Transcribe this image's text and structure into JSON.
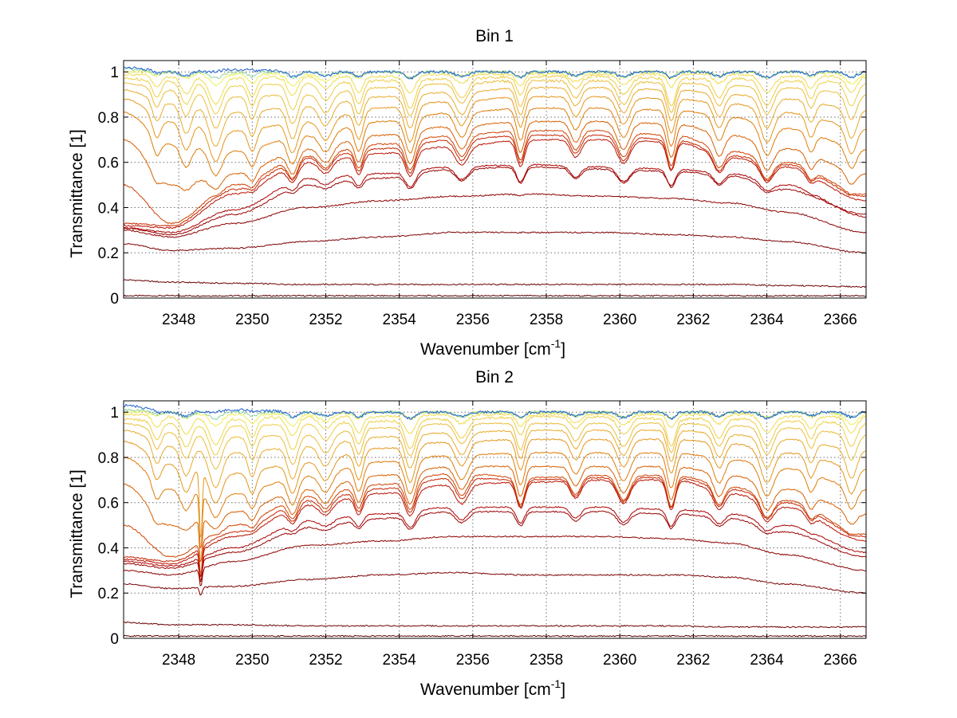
{
  "chart_data": [
    {
      "type": "line",
      "title": "Bin 1",
      "xlabel": "Wavenumber [cm",
      "xlabel_sup": "-1",
      "xlabel_tail": "]",
      "ylabel": "Transmittance [1]",
      "xlim": [
        2346.5,
        2366.7
      ],
      "ylim": [
        0,
        1.05
      ],
      "xticks": [
        2348,
        2350,
        2352,
        2354,
        2356,
        2358,
        2360,
        2362,
        2364,
        2366
      ],
      "yticks": [
        0,
        0.2,
        0.4,
        0.6,
        0.8,
        1
      ],
      "ytick_labels": [
        "0",
        "0.2",
        "0.4",
        "0.6",
        "0.8",
        "1"
      ],
      "grid": true,
      "absorption_lines": [
        2347.4,
        2348.2,
        2349.0,
        2350.0,
        2351.1,
        2352.0,
        2352.9,
        2354.3,
        2355.7,
        2357.3,
        2358.8,
        2360.1,
        2361.4,
        2362.7,
        2364.0,
        2365.2,
        2366.3
      ],
      "series": [
        {
          "color": "#5c0000",
          "values": [
            0.01,
            0.01,
            0.01,
            0.01,
            0.01,
            0.01,
            0.01,
            0.01,
            0.01,
            0.01,
            0.01,
            0.01
          ]
        },
        {
          "color": "#6a0000",
          "values": [
            0.08,
            0.07,
            0.065,
            0.06,
            0.06,
            0.06,
            0.06,
            0.06,
            0.06,
            0.06,
            0.055,
            0.05
          ]
        },
        {
          "color": "#7a0000",
          "values": [
            0.24,
            0.21,
            0.22,
            0.25,
            0.27,
            0.29,
            0.29,
            0.29,
            0.28,
            0.27,
            0.25,
            0.2
          ]
        },
        {
          "color": "#8a0000",
          "values": [
            0.3,
            0.27,
            0.33,
            0.4,
            0.43,
            0.45,
            0.46,
            0.45,
            0.44,
            0.42,
            0.38,
            0.29
          ]
        },
        {
          "color": "#9a0000",
          "values": [
            0.31,
            0.28,
            0.37,
            0.5,
            0.53,
            0.57,
            0.58,
            0.57,
            0.56,
            0.54,
            0.48,
            0.37
          ]
        },
        {
          "color": "#ab0000",
          "values": [
            0.31,
            0.29,
            0.39,
            0.53,
            0.55,
            0.58,
            0.59,
            0.58,
            0.57,
            0.55,
            0.5,
            0.36
          ]
        },
        {
          "color": "#b91200",
          "values": [
            0.32,
            0.31,
            0.46,
            0.6,
            0.64,
            0.67,
            0.7,
            0.7,
            0.69,
            0.62,
            0.58,
            0.43
          ]
        },
        {
          "color": "#c52400",
          "values": [
            0.33,
            0.32,
            0.48,
            0.62,
            0.66,
            0.7,
            0.72,
            0.72,
            0.7,
            0.63,
            0.59,
            0.45
          ]
        },
        {
          "color": "#d04100",
          "values": [
            0.5,
            0.33,
            0.5,
            0.63,
            0.68,
            0.72,
            0.74,
            0.74,
            0.72,
            0.65,
            0.6,
            0.46
          ]
        },
        {
          "color": "#d85f00",
          "values": [
            0.7,
            0.5,
            0.55,
            0.66,
            0.72,
            0.76,
            0.78,
            0.78,
            0.77,
            0.72,
            0.66,
            0.55
          ]
        },
        {
          "color": "#df7c08",
          "values": [
            0.82,
            0.68,
            0.65,
            0.72,
            0.78,
            0.82,
            0.84,
            0.84,
            0.83,
            0.8,
            0.75,
            0.66
          ]
        },
        {
          "color": "#e4961a",
          "values": [
            0.88,
            0.78,
            0.74,
            0.78,
            0.84,
            0.87,
            0.89,
            0.89,
            0.88,
            0.86,
            0.82,
            0.75
          ]
        },
        {
          "color": "#e8ab2b",
          "values": [
            0.92,
            0.86,
            0.82,
            0.85,
            0.89,
            0.91,
            0.93,
            0.93,
            0.92,
            0.9,
            0.88,
            0.83
          ]
        },
        {
          "color": "#ebbd3a",
          "values": [
            0.95,
            0.92,
            0.89,
            0.9,
            0.93,
            0.95,
            0.96,
            0.96,
            0.95,
            0.94,
            0.93,
            0.9
          ]
        },
        {
          "color": "#eece45",
          "values": [
            0.97,
            0.96,
            0.94,
            0.95,
            0.96,
            0.97,
            0.98,
            0.98,
            0.97,
            0.97,
            0.96,
            0.95
          ]
        },
        {
          "color": "#efdc4e",
          "values": [
            0.99,
            0.98,
            0.97,
            0.98,
            0.98,
            0.99,
            0.99,
            0.99,
            0.99,
            0.99,
            0.98,
            0.98
          ]
        },
        {
          "color": "#eef05a",
          "values": [
            1.0,
            1.0,
            0.99,
            0.99,
            1.0,
            1.0,
            1.0,
            1.0,
            1.0,
            1.0,
            1.0,
            0.99
          ]
        },
        {
          "color": "#8fd6a0",
          "values": [
            1.01,
            1.0,
            1.0,
            1.0,
            1.0,
            1.0,
            1.0,
            1.0,
            1.0,
            1.0,
            1.0,
            1.0
          ]
        },
        {
          "color": "#1f5fd0",
          "values": [
            1.02,
            1.0,
            1.01,
            1.0,
            1.0,
            1.0,
            1.0,
            1.0,
            1.0,
            1.0,
            1.0,
            1.0
          ]
        }
      ]
    },
    {
      "type": "line",
      "title": "Bin 2",
      "xlabel": "Wavenumber [cm",
      "xlabel_sup": "-1",
      "xlabel_tail": "]",
      "ylabel": "Transmittance [1]",
      "xlim": [
        2346.5,
        2366.7
      ],
      "ylim": [
        0,
        1.05
      ],
      "xticks": [
        2348,
        2350,
        2352,
        2354,
        2356,
        2358,
        2360,
        2362,
        2364,
        2366
      ],
      "yticks": [
        0,
        0.2,
        0.4,
        0.6,
        0.8,
        1
      ],
      "ytick_labels": [
        "0",
        "0.2",
        "0.4",
        "0.6",
        "0.8",
        "1"
      ],
      "grid": true,
      "absorption_lines": [
        2347.4,
        2348.2,
        2349.0,
        2350.0,
        2351.1,
        2352.0,
        2352.9,
        2354.3,
        2355.7,
        2357.3,
        2358.8,
        2360.1,
        2361.4,
        2362.7,
        2364.0,
        2365.2,
        2366.3
      ],
      "series": [
        {
          "color": "#5c0000",
          "values": [
            0.01,
            0.01,
            0.01,
            0.01,
            0.01,
            0.01,
            0.01,
            0.01,
            0.01,
            0.01,
            0.01,
            0.01
          ]
        },
        {
          "color": "#6a0000",
          "values": [
            0.07,
            0.06,
            0.06,
            0.055,
            0.055,
            0.055,
            0.055,
            0.055,
            0.055,
            0.05,
            0.05,
            0.05
          ]
        },
        {
          "color": "#7a0000",
          "values": [
            0.24,
            0.22,
            0.23,
            0.26,
            0.28,
            0.29,
            0.28,
            0.28,
            0.28,
            0.27,
            0.24,
            0.2
          ]
        },
        {
          "color": "#8a0000",
          "values": [
            0.3,
            0.28,
            0.34,
            0.41,
            0.43,
            0.45,
            0.45,
            0.45,
            0.44,
            0.42,
            0.37,
            0.3
          ]
        },
        {
          "color": "#9a0000",
          "values": [
            0.33,
            0.31,
            0.38,
            0.49,
            0.53,
            0.56,
            0.56,
            0.56,
            0.55,
            0.53,
            0.47,
            0.36
          ]
        },
        {
          "color": "#ab0000",
          "values": [
            0.34,
            0.32,
            0.4,
            0.52,
            0.55,
            0.58,
            0.58,
            0.58,
            0.57,
            0.55,
            0.5,
            0.38
          ]
        },
        {
          "color": "#b91200",
          "values": [
            0.35,
            0.33,
            0.45,
            0.59,
            0.64,
            0.68,
            0.69,
            0.7,
            0.7,
            0.64,
            0.58,
            0.43
          ]
        },
        {
          "color": "#c52400",
          "values": [
            0.36,
            0.34,
            0.47,
            0.61,
            0.66,
            0.71,
            0.7,
            0.71,
            0.71,
            0.66,
            0.6,
            0.45
          ]
        },
        {
          "color": "#d04100",
          "values": [
            0.5,
            0.36,
            0.5,
            0.63,
            0.68,
            0.73,
            0.71,
            0.72,
            0.72,
            0.67,
            0.61,
            0.46
          ]
        },
        {
          "color": "#d85f00",
          "values": [
            0.68,
            0.5,
            0.56,
            0.66,
            0.72,
            0.76,
            0.76,
            0.76,
            0.76,
            0.72,
            0.66,
            0.55
          ]
        },
        {
          "color": "#df7c08",
          "values": [
            0.8,
            0.66,
            0.64,
            0.72,
            0.78,
            0.81,
            0.82,
            0.82,
            0.82,
            0.79,
            0.75,
            0.66
          ]
        },
        {
          "color": "#e4961a",
          "values": [
            0.87,
            0.77,
            0.73,
            0.78,
            0.84,
            0.87,
            0.88,
            0.88,
            0.88,
            0.86,
            0.82,
            0.75
          ]
        },
        {
          "color": "#e8ab2b",
          "values": [
            0.92,
            0.85,
            0.82,
            0.85,
            0.89,
            0.91,
            0.92,
            0.92,
            0.92,
            0.9,
            0.88,
            0.83
          ]
        },
        {
          "color": "#ebbd3a",
          "values": [
            0.95,
            0.91,
            0.89,
            0.9,
            0.93,
            0.95,
            0.95,
            0.95,
            0.95,
            0.94,
            0.93,
            0.9
          ]
        },
        {
          "color": "#eece45",
          "values": [
            0.97,
            0.95,
            0.94,
            0.95,
            0.96,
            0.97,
            0.98,
            0.98,
            0.97,
            0.97,
            0.96,
            0.95
          ]
        },
        {
          "color": "#efdc4e",
          "values": [
            0.99,
            0.98,
            0.97,
            0.98,
            0.98,
            0.99,
            0.99,
            0.99,
            0.99,
            0.99,
            0.98,
            0.98
          ]
        },
        {
          "color": "#eef05a",
          "values": [
            1.0,
            1.0,
            0.99,
            0.99,
            1.0,
            1.0,
            1.0,
            1.0,
            1.0,
            1.0,
            1.0,
            0.99
          ]
        },
        {
          "color": "#8fd6a0",
          "values": [
            1.01,
            1.0,
            1.0,
            1.0,
            1.0,
            1.0,
            1.0,
            1.0,
            1.0,
            1.0,
            1.0,
            1.0
          ]
        },
        {
          "color": "#1f5fd0",
          "values": [
            1.03,
            1.0,
            1.01,
            1.0,
            1.0,
            1.0,
            1.0,
            1.0,
            1.0,
            1.0,
            1.0,
            1.0
          ]
        }
      ],
      "spike": {
        "x": 2348.6,
        "min": 0.16
      }
    }
  ],
  "series_x": [
    2346.5,
    2347.8,
    2349.5,
    2351.5,
    2353.5,
    2355.5,
    2357.5,
    2359.5,
    2361.5,
    2363.0,
    2364.5,
    2366.7
  ]
}
